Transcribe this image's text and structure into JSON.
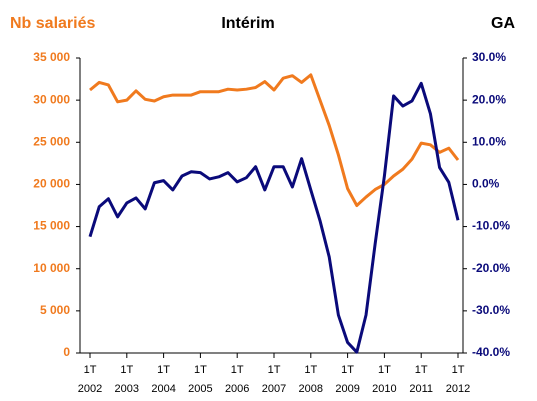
{
  "chart_data": {
    "type": "line",
    "title": "Intérim",
    "y_label": "Nb salariés",
    "y2_label": "GA",
    "categories": [
      "1T\n2002",
      null,
      null,
      null,
      "1T\n2003",
      null,
      null,
      null,
      "1T\n2004",
      null,
      null,
      null,
      "1T\n2005",
      null,
      null,
      null,
      "1T\n2006",
      null,
      null,
      null,
      "1T\n2007",
      null,
      null,
      null,
      "1T\n2008",
      null,
      null,
      null,
      "1T\n2009",
      null,
      null,
      null,
      "1T\n2010",
      null,
      null,
      null,
      "1T\n2011",
      null,
      null,
      null,
      "1T\n2012"
    ],
    "series": [
      {
        "name": "Nb salariés",
        "color": "#f07a1e",
        "values": [
          31200,
          32100,
          31800,
          29800,
          30000,
          31100,
          30100,
          29900,
          30400,
          30600,
          30600,
          30600,
          31000,
          31000,
          31000,
          31300,
          31200,
          31300,
          31500,
          32200,
          31200,
          32600,
          32900,
          32100,
          33000,
          30000,
          27000,
          23500,
          19500,
          17500,
          18500,
          19400,
          20000,
          21000,
          21800,
          23000,
          24900,
          24700,
          23800,
          24300,
          22900
        ]
      },
      {
        "name": "GA",
        "color": "#0a0a7a",
        "axis": "y2",
        "values": [
          -12.4,
          -5.3,
          -3.4,
          -7.7,
          -4.4,
          -3.2,
          -5.8,
          0.4,
          0.9,
          -1.3,
          2.0,
          3.0,
          2.8,
          1.3,
          1.8,
          2.8,
          0.6,
          1.6,
          4.2,
          -1.3,
          4.2,
          4.2,
          -0.6,
          6.1,
          -1.3,
          -8.6,
          -17.2,
          -31.0,
          -37.5,
          -39.8,
          -31.0,
          -14.0,
          2.0,
          21.0,
          18.6,
          19.8,
          24.0,
          16.8,
          4.0,
          0.5,
          -8.5
        ]
      }
    ],
    "ylim": [
      0,
      35000
    ],
    "yticks": [
      0,
      {
        "value": 5000,
        "label": "5 000"
      },
      {
        "value": 10000,
        "label": "10 000"
      },
      {
        "value": 15000,
        "label": "15 000"
      },
      {
        "value": 20000,
        "label": "20 000"
      },
      {
        "value": 25000,
        "label": "25 000"
      },
      {
        "value": 30000,
        "label": "30 000"
      },
      {
        "value": 35000,
        "label": "35 000"
      }
    ],
    "y2lim": [
      -40,
      30
    ],
    "y2ticks": [
      {
        "value": -40,
        "label": "-40.0%"
      },
      {
        "value": -30,
        "label": "-30.0%"
      },
      {
        "value": -20,
        "label": "-20.0%"
      },
      {
        "value": -10,
        "label": "-10.0%"
      },
      {
        "value": 0,
        "label": "0.0%"
      },
      {
        "value": 10,
        "label": "10.0%"
      },
      {
        "value": 20,
        "label": "20.0%"
      },
      {
        "value": 30,
        "label": "30.0%"
      }
    ],
    "grid": false
  }
}
